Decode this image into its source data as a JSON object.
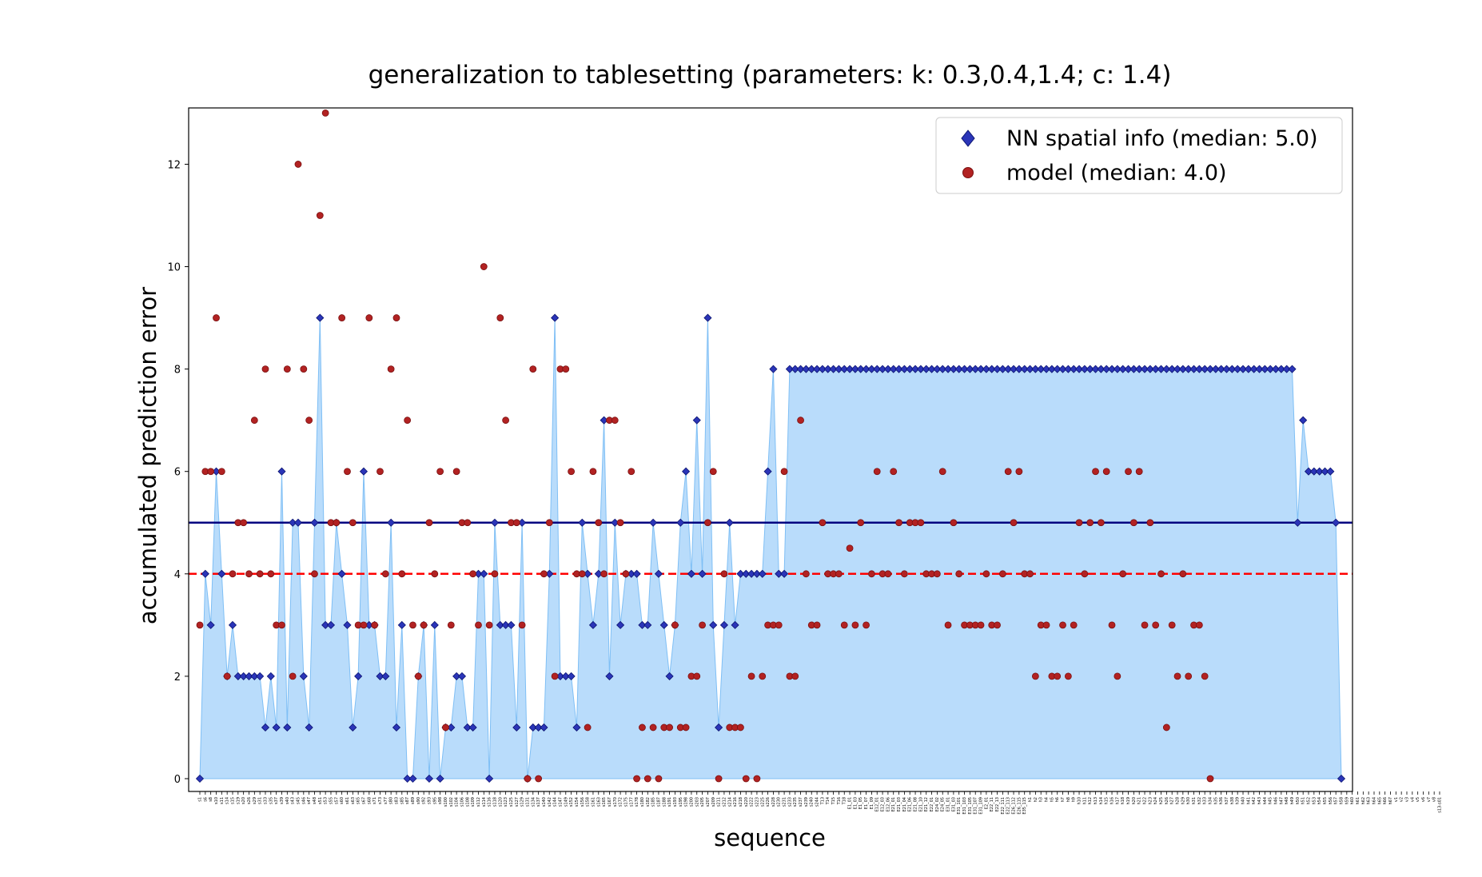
{
  "chart_data": {
    "type": "line",
    "title": "generalization to tablesetting (parameters: k: 0.3,0.4,1.4; c: 1.4)",
    "xlabel": "sequence",
    "ylabel": "accumulated prediction error",
    "ylim": [
      -0.25,
      13.1
    ],
    "yticks": [
      0,
      2,
      4,
      6,
      8,
      10,
      12
    ],
    "legend_position": "upper right",
    "x_tick_labels": [
      "s1",
      "s6",
      "s8",
      "s10",
      "s11",
      "s14",
      "s15",
      "s19",
      "s20",
      "s26",
      "s29",
      "s31",
      "s33",
      "s35",
      "s37",
      "s39",
      "s40",
      "s43",
      "s45",
      "s46",
      "s47",
      "s48",
      "s51",
      "s53",
      "s55",
      "s57",
      "s60",
      "s61",
      "s63",
      "s65",
      "s67",
      "s68",
      "s71",
      "s73",
      "s77",
      "s80",
      "s83",
      "s85",
      "s87",
      "s89",
      "s90",
      "s92",
      "s93",
      "s95",
      "s98",
      "s100",
      "s102",
      "s104",
      "s106",
      "s108",
      "s109",
      "s112",
      "s114",
      "s116",
      "s118",
      "s120",
      "s123",
      "s125",
      "s127",
      "s129",
      "s131",
      "s134",
      "s137",
      "s140",
      "s142",
      "s144",
      "s147",
      "s149",
      "s152",
      "s154",
      "s156",
      "s158",
      "s161",
      "s163",
      "s165",
      "s167",
      "s170",
      "s172",
      "s175",
      "s177",
      "s178",
      "s180",
      "s182",
      "s185",
      "s187",
      "s188",
      "s191",
      "s193",
      "s195",
      "s198",
      "s200",
      "s203",
      "s205",
      "s207",
      "s209",
      "s211",
      "s212",
      "s214",
      "s216",
      "s218",
      "s220",
      "s222",
      "s223",
      "s225",
      "s226",
      "s228",
      "s230",
      "s231",
      "s233",
      "s235",
      "s237",
      "s239",
      "s240",
      "s244",
      "T13",
      "T14",
      "T15",
      "T16",
      "T18",
      "E1_01",
      "E1_03",
      "E1_05",
      "E1_07",
      "E1_09",
      "E12_01",
      "E12_03",
      "E12_06",
      "E21_01",
      "E21_03",
      "E21_04",
      "E21_06",
      "E21_08",
      "E21_10",
      "E21_12",
      "E22_01",
      "E24_02",
      "E24_05",
      "E31_01",
      "E31_03",
      "E31_101",
      "E31_103",
      "E31_105",
      "E31_107",
      "E31_109",
      "E2_01",
      "E22_11",
      "E22_13",
      "E22_111",
      "E22_113",
      "E26_112",
      "E26_115",
      "E35_115",
      "h1",
      "h2",
      "h3",
      "h4",
      "h5",
      "h6",
      "h7",
      "h8",
      "h9",
      "h10",
      "h11",
      "h12",
      "h13",
      "h14",
      "h15",
      "h16",
      "h17",
      "h18",
      "h19",
      "h20",
      "h21",
      "h22",
      "h23",
      "h24",
      "h25",
      "h26",
      "h27",
      "h28",
      "h29",
      "h30",
      "h31",
      "h32",
      "h33",
      "h34",
      "h35",
      "h36",
      "h37",
      "h38",
      "h39",
      "h40",
      "h41",
      "h42",
      "h43",
      "h44",
      "h45",
      "h46",
      "h47",
      "h48",
      "h49",
      "h50",
      "h51",
      "h52",
      "h53",
      "h54",
      "h55",
      "h56",
      "h57",
      "h58",
      "h59",
      "h60",
      "h61",
      "h62",
      "h63",
      "h64",
      "h65",
      "h66",
      "h67",
      "v1",
      "v2",
      "v3",
      "v4",
      "v5",
      "v6",
      "v7",
      "v8",
      "s13-s01"
    ],
    "series": [
      {
        "name": "NN spatial info (median: 5.0)",
        "marker": "diamond",
        "values": [
          0,
          4,
          3,
          6,
          4,
          2,
          3,
          2,
          2,
          2,
          2,
          2,
          1,
          2,
          1,
          6,
          1,
          5,
          5,
          2,
          1,
          5,
          9,
          3,
          3,
          5,
          4,
          3,
          1,
          2,
          6,
          3,
          3,
          2,
          2,
          5,
          1,
          3,
          0,
          0,
          2,
          3,
          0,
          3,
          0,
          1,
          1,
          2,
          2,
          1,
          1,
          4,
          4,
          0,
          5,
          3,
          3,
          3,
          1,
          5,
          0,
          1,
          1,
          1,
          4,
          9,
          2,
          2,
          2,
          1,
          5,
          4,
          3,
          4,
          7,
          2,
          5,
          3,
          4,
          4,
          4,
          3,
          3,
          5,
          4,
          3,
          2,
          3,
          5,
          6,
          4,
          7,
          4,
          9,
          3,
          1,
          3,
          5,
          3,
          4,
          4,
          4,
          4,
          4,
          6,
          8,
          4,
          4,
          8,
          8,
          8,
          8,
          8,
          8,
          8,
          8,
          8,
          8,
          8,
          8,
          8,
          8,
          8,
          8,
          8,
          8,
          8,
          8,
          8,
          8,
          8,
          8,
          8,
          8,
          8,
          8,
          8,
          8,
          8,
          8,
          8,
          8,
          8,
          8,
          8,
          8,
          8,
          8,
          8,
          8,
          8,
          8,
          8,
          8,
          8,
          8,
          8,
          8,
          8,
          8,
          8,
          8,
          8,
          8,
          8,
          8,
          8,
          8,
          8,
          8,
          8,
          8,
          8,
          8,
          8,
          8,
          8,
          8,
          8,
          8,
          8,
          8,
          8,
          8,
          8,
          8,
          8,
          8,
          8,
          8,
          8,
          8,
          8,
          8,
          8,
          8,
          8,
          8,
          8,
          8,
          8,
          5,
          7,
          6,
          6,
          6,
          6,
          6,
          5,
          0
        ]
      },
      {
        "name": "model (median: 4.0)",
        "marker": "circle",
        "values": [
          3,
          6,
          6,
          9,
          6,
          2,
          4,
          5,
          5,
          4,
          7,
          4,
          8,
          4,
          3,
          3,
          8,
          2,
          12,
          8,
          7,
          4,
          11,
          13,
          5,
          5,
          9,
          6,
          5,
          3,
          3,
          9,
          3,
          6,
          4,
          8,
          9,
          4,
          7,
          3,
          2,
          3,
          5,
          4,
          6,
          1,
          3,
          6,
          5,
          5,
          4,
          3,
          10,
          3,
          4,
          9,
          7,
          5,
          5,
          3,
          0,
          8,
          0,
          4,
          5,
          2,
          8,
          8,
          6,
          4,
          4,
          1,
          6,
          5,
          4,
          7,
          7,
          5,
          4,
          6,
          0,
          1,
          0,
          1,
          0,
          1,
          1,
          3,
          1,
          1,
          2,
          2,
          3,
          5,
          6,
          0,
          4,
          1,
          1,
          1,
          0,
          2,
          0,
          2,
          3,
          3,
          3,
          6,
          2,
          2,
          7,
          4,
          3,
          3,
          5,
          4,
          4,
          4,
          3,
          4.5,
          3,
          5,
          3,
          4,
          6,
          4,
          4,
          6,
          5,
          4,
          5,
          5,
          5,
          4,
          4,
          4,
          6,
          3,
          5,
          4,
          3,
          3,
          3,
          3,
          4,
          3,
          3,
          4,
          6,
          5,
          6,
          4,
          4,
          2,
          3,
          3,
          2,
          2,
          3,
          2,
          3,
          5,
          4,
          5,
          6,
          5,
          6,
          3,
          2,
          4,
          6,
          5,
          6,
          3,
          5,
          3,
          4,
          1,
          3,
          2,
          4,
          2,
          3,
          3,
          2,
          0
        ]
      }
    ],
    "medians": [
      {
        "label": "NN spatial info median",
        "value": 5.0,
        "color": "#000080",
        "style": "solid"
      },
      {
        "label": "model median",
        "value": 4.0,
        "color": "#ff0000",
        "style": "dashed"
      }
    ],
    "colors": {
      "fill": "#b9dcfb",
      "fill_edge": "#7fbff5",
      "nn_marker": "#2b35b8",
      "nn_marker_edge": "#0b1470",
      "model_marker": "#b22222",
      "model_marker_edge": "#7a1010"
    }
  }
}
